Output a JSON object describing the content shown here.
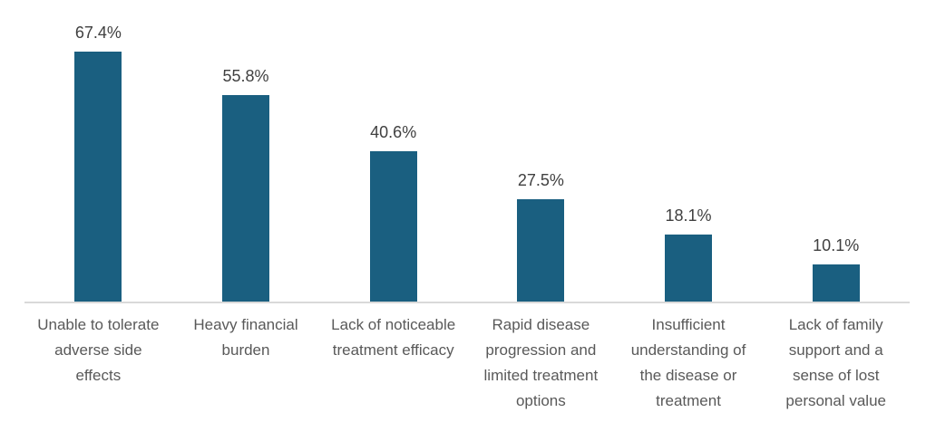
{
  "chart_data": {
    "type": "bar",
    "title": "",
    "xlabel": "",
    "ylabel": "",
    "ylim": [
      0,
      70
    ],
    "grid": false,
    "legend": null,
    "categories": [
      "Unable to tolerate adverse side effects",
      "Heavy financial burden",
      "Lack of noticeable treatment efficacy",
      "Rapid disease progression and limited treatment options",
      "Insufficient understanding of the disease or treatment",
      "Lack of family support and a sense of lost personal value"
    ],
    "category_lines": [
      [
        "Unable to tolerate",
        "adverse side",
        "effects"
      ],
      [
        "Heavy financial",
        "burden"
      ],
      [
        "Lack of noticeable",
        "treatment efficacy"
      ],
      [
        "Rapid disease",
        "progression and",
        "limited treatment",
        "options"
      ],
      [
        "Insufficient",
        "understanding of",
        "the disease or",
        "treatment"
      ],
      [
        "Lack of family",
        "support and a",
        "sense of lost",
        "personal value"
      ]
    ],
    "values": [
      67.4,
      55.8,
      40.6,
      27.5,
      18.1,
      10.1
    ],
    "value_labels": [
      "67.4%",
      "55.8%",
      "40.6%",
      "27.5%",
      "18.1%",
      "10.1%"
    ],
    "colors": {
      "bar": "#1A5F80",
      "axis_line": "#D9D9D9",
      "value_label": "#404040",
      "category_label": "#595959"
    }
  }
}
